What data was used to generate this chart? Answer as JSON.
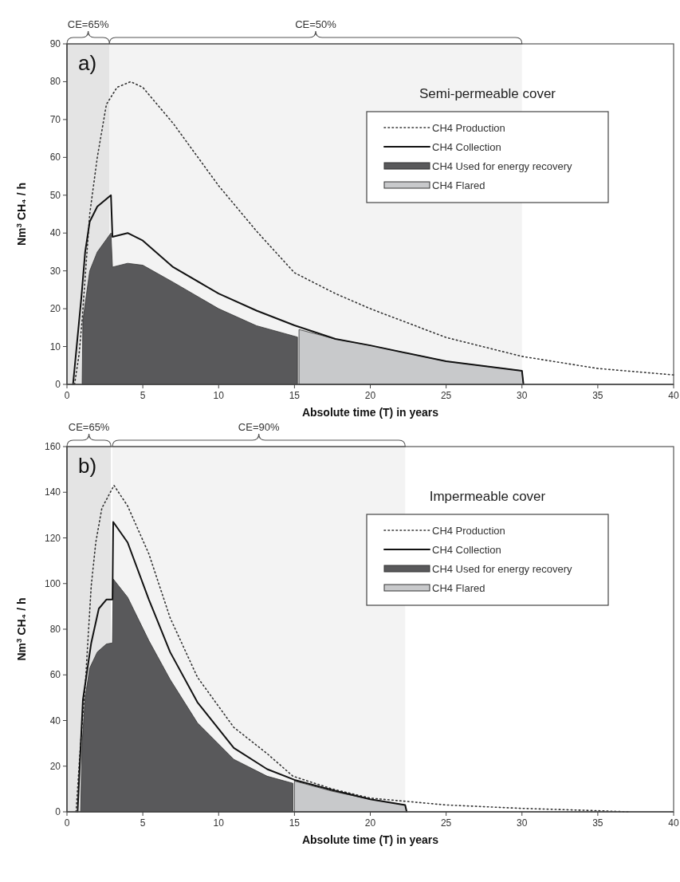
{
  "chart_data": [
    {
      "type": "line",
      "title": "Semi-permeable cover",
      "xlabel": "Absolute time (T) in years",
      "ylabel": "Nm$^{3}$ CH₄ / h",
      "annotations": [
        "a)"
      ],
      "xlim": [
        0,
        40
      ],
      "xticks": [
        0,
        5,
        10,
        15,
        20,
        25,
        30,
        35,
        40
      ],
      "ylim": [
        0,
        90
      ],
      "yticks": [
        0,
        10,
        20,
        30,
        40,
        50,
        60,
        70,
        80,
        90
      ],
      "legend": "top right",
      "grid": false,
      "bands": [
        {
          "axis": "x",
          "from": 0,
          "to": 2.8,
          "label": "CE=65%",
          "color": "#e4e4e4"
        },
        {
          "axis": "x",
          "from": 2.8,
          "to": 30,
          "label": "CE=50%",
          "color": "#f3f3f3"
        }
      ],
      "series": [
        {
          "name": "CH4 Production",
          "type": "line",
          "line_style": "dotted",
          "color": "#333333",
          "x": [
            0.5,
            0.8,
            1,
            1.5,
            2,
            2.6,
            3.3,
            4.2,
            5,
            7,
            10,
            12.5,
            15,
            17.7,
            20,
            25,
            30,
            35,
            40
          ],
          "values": [
            0,
            8,
            17,
            45,
            60,
            74,
            78.5,
            80,
            78.5,
            69,
            52.5,
            40.5,
            29.5,
            24,
            20,
            12.4,
            7.4,
            4.2,
            2.5
          ]
        },
        {
          "name": "CH4 Collection",
          "type": "line",
          "line_style": "solid",
          "color": "#111111",
          "x": [
            0.4,
            0.95,
            1.2,
            1.5,
            2,
            2.9,
            3.0,
            4,
            5,
            7,
            10,
            12.5,
            15,
            17.7,
            20,
            25,
            30,
            30.1
          ],
          "values": [
            0,
            23,
            35,
            43,
            47,
            50,
            39,
            40,
            38,
            31,
            24,
            19.5,
            15.6,
            12,
            10.3,
            6.1,
            3.6,
            0
          ]
        },
        {
          "name": "CH4 Used for energy recovery",
          "type": "area",
          "color": "#59595b",
          "x": [
            1,
            1.05,
            1.5,
            2,
            2.9,
            3,
            4,
            5,
            7,
            10,
            12.5,
            15.2,
            15.2
          ],
          "values": [
            0,
            17,
            30,
            35,
            40,
            31,
            32,
            31.5,
            27,
            20,
            15.5,
            12.5,
            0
          ]
        },
        {
          "name": "CH4 Flared",
          "type": "area",
          "color": "#c8c9cb",
          "x": [
            15.3,
            15.3,
            17.7,
            20,
            25,
            30,
            30.1
          ],
          "values": [
            0,
            14.5,
            12,
            10.3,
            6.1,
            3.6,
            0
          ]
        }
      ]
    },
    {
      "type": "line",
      "title": "Impermeable cover",
      "xlabel": "Absolute time (T) in years",
      "ylabel": "Nm$^{3}$ CH₄ / h",
      "annotations": [
        "b)"
      ],
      "xlim": [
        0,
        40
      ],
      "xticks": [
        0,
        5,
        10,
        15,
        20,
        25,
        30,
        35,
        40
      ],
      "ylim": [
        0,
        160
      ],
      "yticks": [
        0,
        20,
        40,
        60,
        80,
        100,
        120,
        140,
        160
      ],
      "legend": "top right",
      "grid": false,
      "bands": [
        {
          "axis": "x",
          "from": 0,
          "to": 2.9,
          "label": "CE=65%",
          "color": "#e4e4e4"
        },
        {
          "axis": "x",
          "from": 3,
          "to": 22.3,
          "label": "CE=90%",
          "color": "#f3f3f3"
        }
      ],
      "series": [
        {
          "name": "CH4 Production",
          "type": "line",
          "line_style": "dotted",
          "color": "#333333",
          "x": [
            0.6,
            0.9,
            1.2,
            1.6,
            1.9,
            2.3,
            3.1,
            4,
            5.4,
            6.8,
            8.6,
            11,
            13.2,
            14.9,
            17.5,
            20,
            25,
            30,
            35,
            37
          ],
          "values": [
            0,
            30,
            55,
            99,
            118,
            133,
            143,
            134,
            113,
            85,
            59,
            37,
            25.5,
            15.6,
            10,
            6,
            3,
            1.5,
            0.5,
            0
          ]
        },
        {
          "name": "CH4 Collection",
          "type": "line",
          "line_style": "solid",
          "color": "#111111",
          "x": [
            0.7,
            1.05,
            1.6,
            2.1,
            2.6,
            3,
            3.05,
            4,
            5.4,
            6.8,
            8.6,
            11,
            13.2,
            15,
            17.5,
            20,
            22.3,
            22.4
          ],
          "values": [
            0,
            49,
            74,
            89,
            93,
            93,
            127,
            118,
            93,
            70,
            48,
            28,
            18.7,
            14,
            9.5,
            5.5,
            3,
            0
          ]
        },
        {
          "name": "CH4 Used for energy recovery",
          "type": "area",
          "color": "#59595b",
          "x": [
            0.9,
            1,
            1.2,
            1.5,
            2,
            2.6,
            3,
            3.05,
            4,
            5.4,
            6.8,
            8.6,
            11,
            13.2,
            14.9,
            14.9
          ],
          "values": [
            0,
            30,
            50,
            63,
            70,
            73.5,
            74,
            102,
            94,
            75,
            58,
            39,
            23,
            15.6,
            12.5,
            0
          ]
        },
        {
          "name": "CH4 Flared",
          "type": "area",
          "color": "#c8c9cb",
          "x": [
            15,
            15,
            17.5,
            20,
            22.3,
            22.4
          ],
          "values": [
            0,
            13.5,
            9,
            5.5,
            3,
            0
          ]
        }
      ]
    }
  ]
}
